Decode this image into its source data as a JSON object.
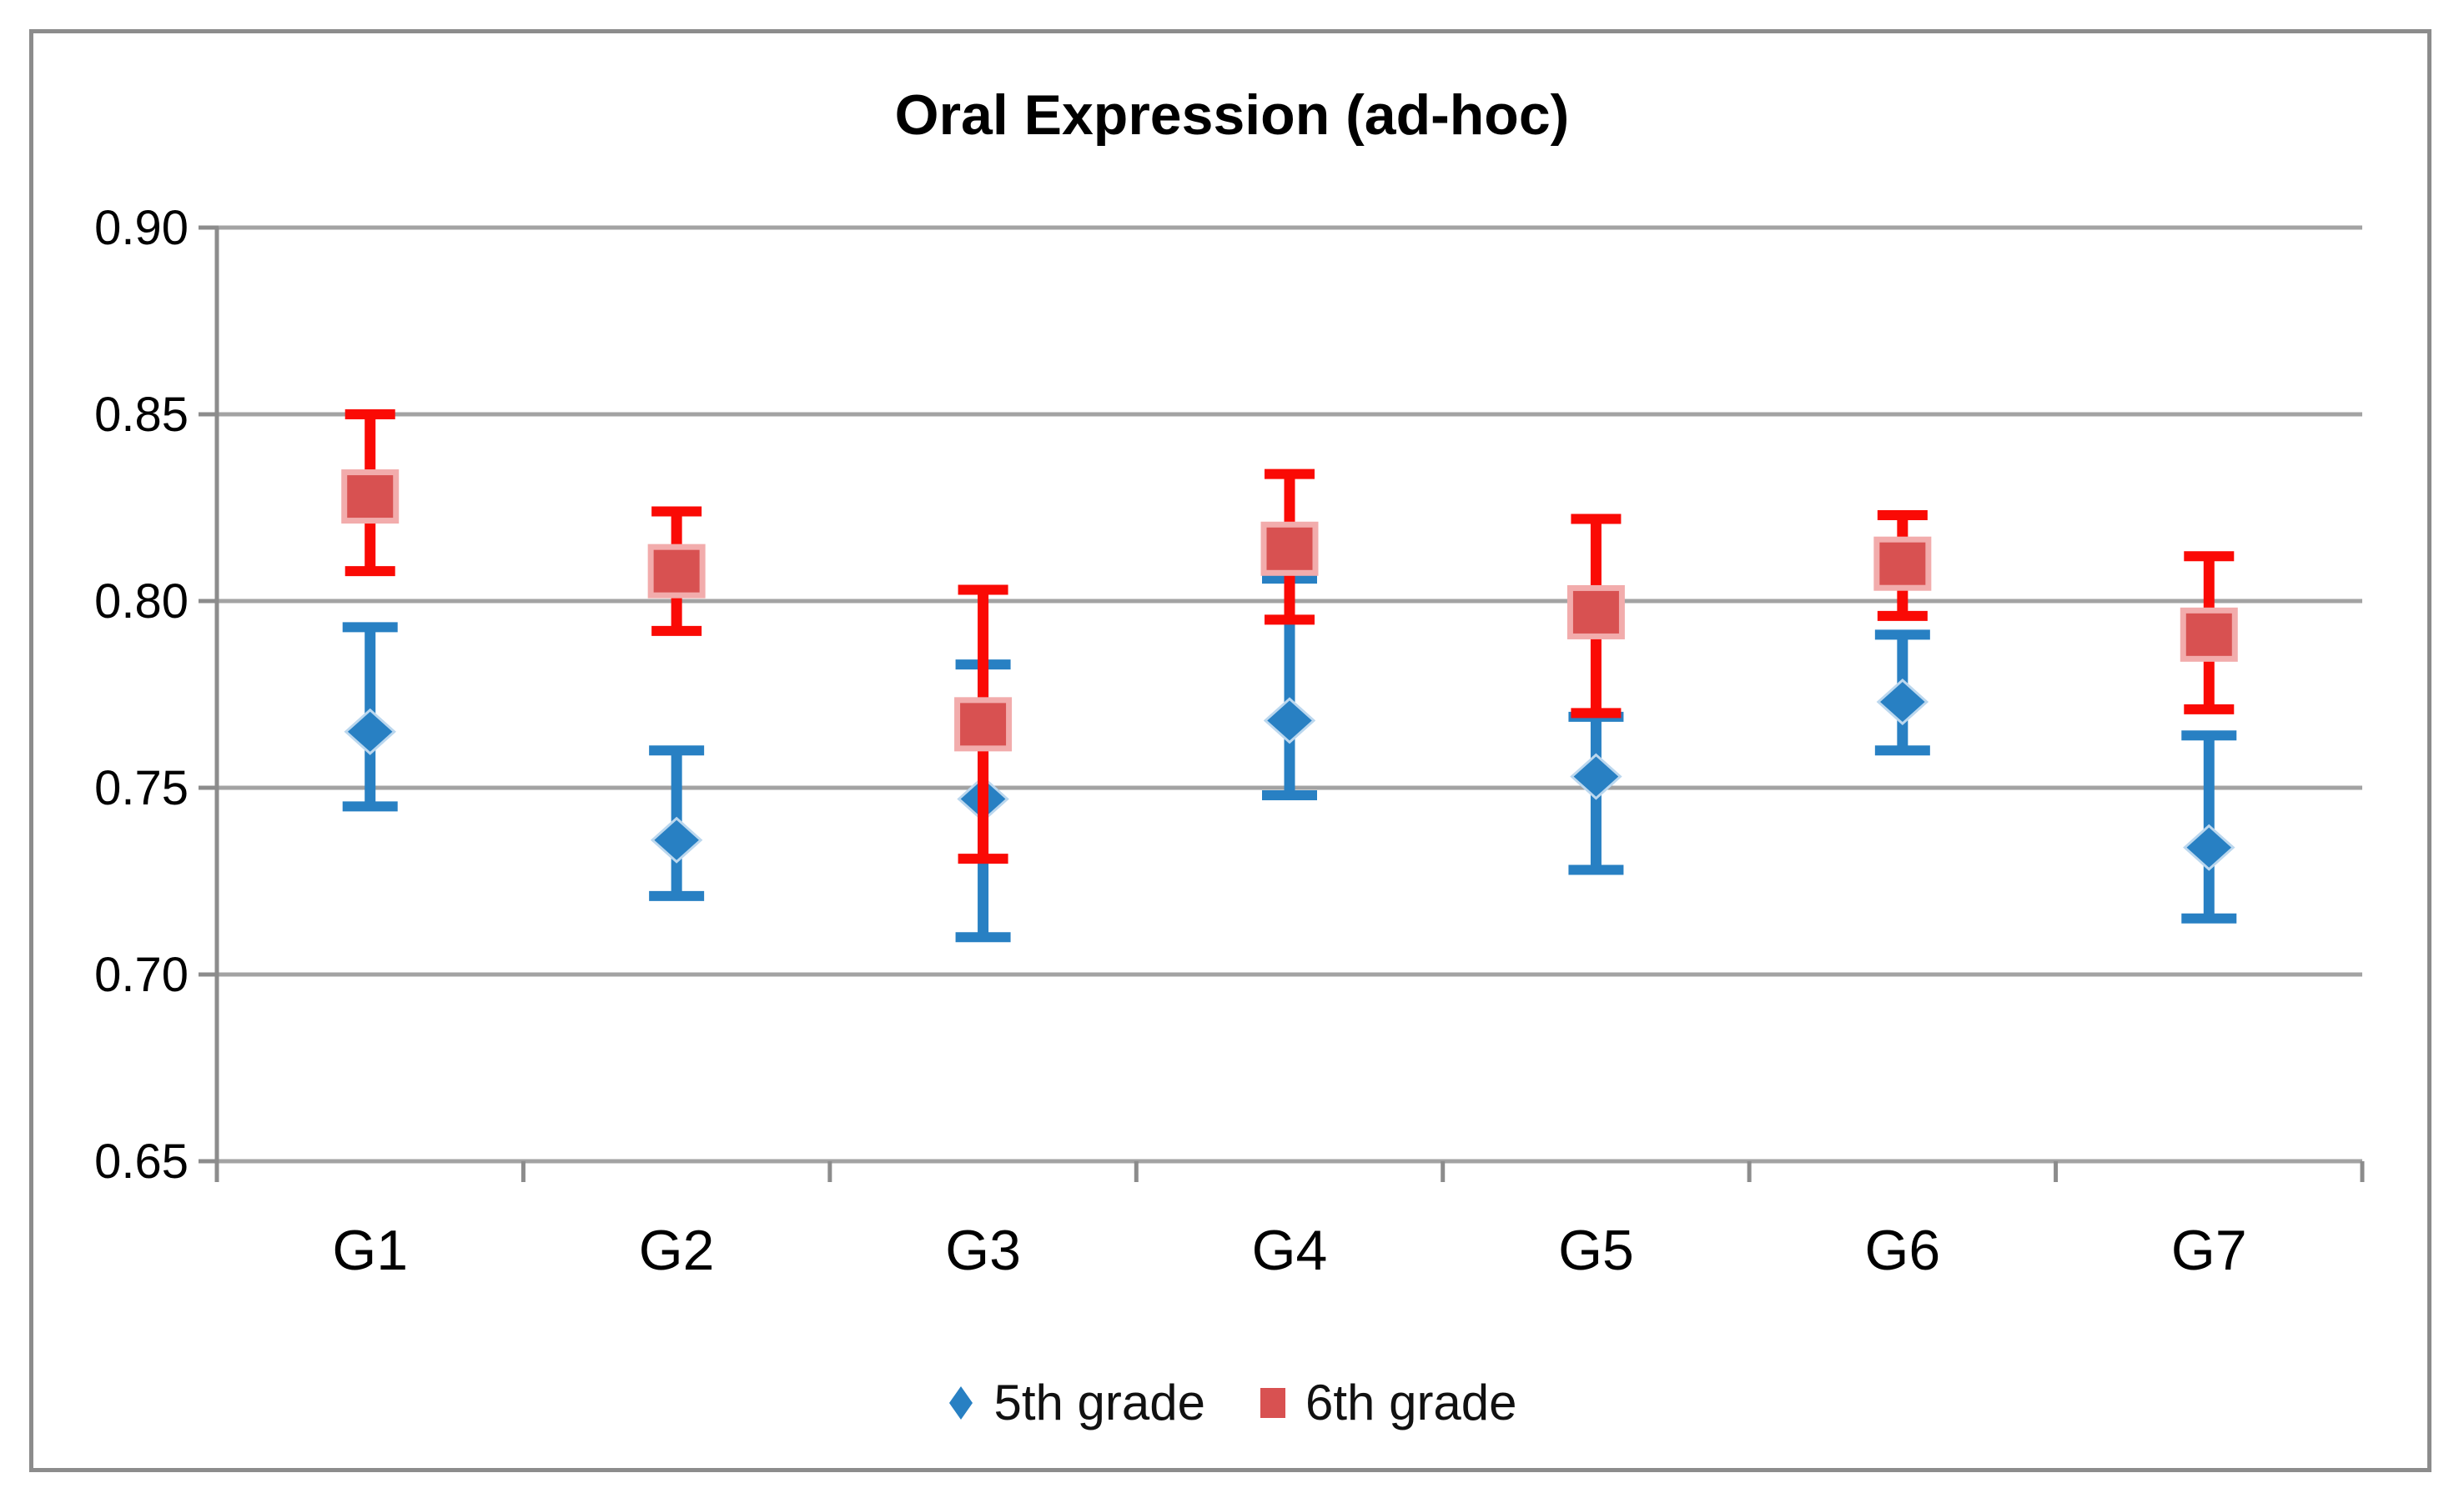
{
  "chart_data": {
    "type": "scatter",
    "title": "Oral Expression (ad-hoc)",
    "categories": [
      "G1",
      "G2",
      "G3",
      "G4",
      "G5",
      "G6",
      "G7"
    ],
    "ylim": [
      0.65,
      0.9
    ],
    "yticks": {
      "values": [
        0.9,
        0.85,
        0.8,
        0.75,
        0.7,
        0.65
      ],
      "labels": [
        "0.90",
        "0.85",
        "0.80",
        "0.75",
        "0.70",
        "0.65"
      ]
    },
    "grid": "horizontal",
    "legend_position": "bottom-center",
    "error_bars": "vertical interval bars with end caps on every point",
    "colors": {
      "gridline": "#A3A3A3",
      "axis": "#8C8C8C",
      "frame_border": "#8C8C8C",
      "title_text": "#000000"
    },
    "series": [
      {
        "name": "5th grade",
        "marker": "diamond",
        "icon": "diamond-icon",
        "color": "#2880C3",
        "line_color": "#2880C3",
        "values": [
          0.765,
          0.736,
          0.747,
          0.768,
          0.753,
          0.773,
          0.734
        ],
        "ci_low": [
          0.745,
          0.721,
          0.71,
          0.748,
          0.728,
          0.76,
          0.715
        ],
        "ci_high": [
          0.793,
          0.76,
          0.783,
          0.806,
          0.769,
          0.791,
          0.764
        ]
      },
      {
        "name": "6th grade",
        "marker": "square",
        "icon": "square-icon",
        "color": "#D85151",
        "marker_border": "#F2ACAC",
        "line_color": "#FA0A05",
        "values": [
          0.828,
          0.808,
          0.767,
          0.814,
          0.797,
          0.81,
          0.791
        ],
        "ci_low": [
          0.808,
          0.792,
          0.731,
          0.795,
          0.77,
          0.796,
          0.771
        ],
        "ci_high": [
          0.85,
          0.824,
          0.803,
          0.834,
          0.822,
          0.823,
          0.812
        ]
      }
    ]
  }
}
